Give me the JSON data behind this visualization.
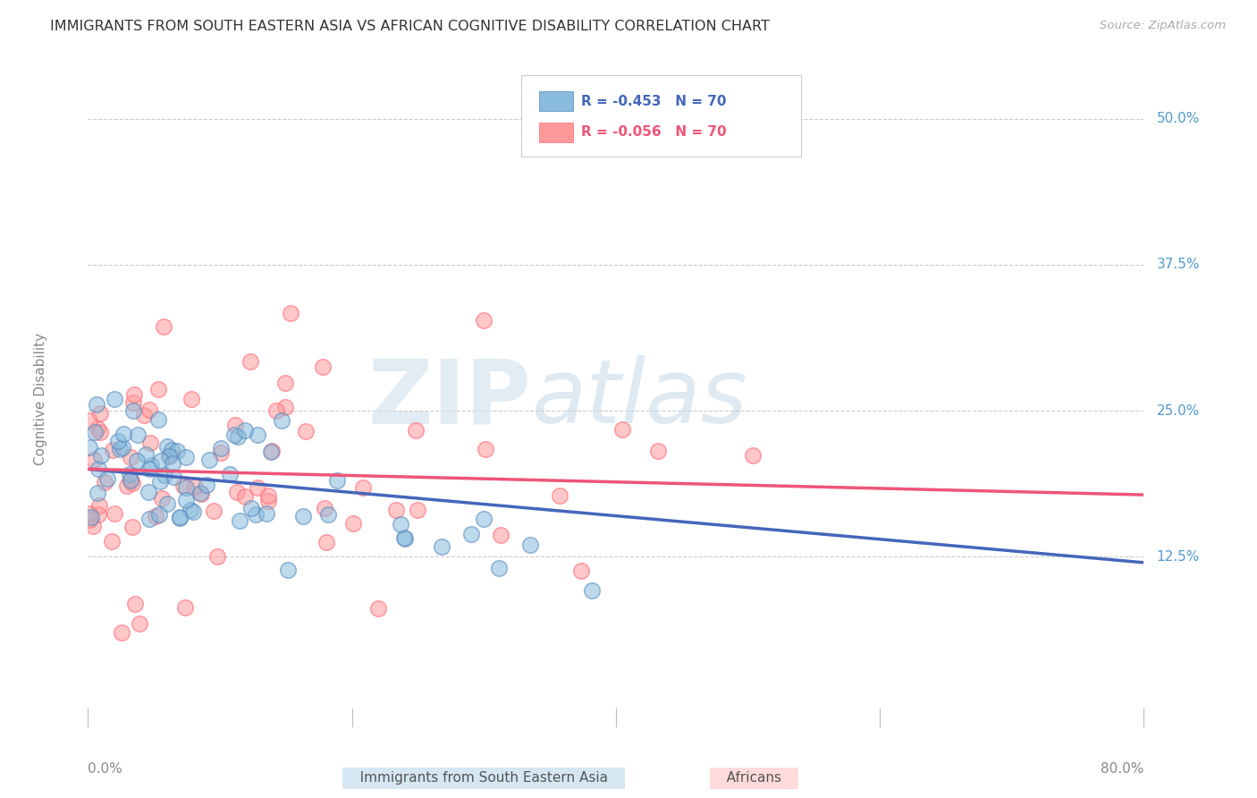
{
  "title": "IMMIGRANTS FROM SOUTH EASTERN ASIA VS AFRICAN COGNITIVE DISABILITY CORRELATION CHART",
  "source": "Source: ZipAtlas.com",
  "ylabel": "Cognitive Disability",
  "xlim": [
    0.0,
    0.8
  ],
  "ylim": [
    -0.02,
    0.54
  ],
  "plot_ylim": [
    -0.02,
    0.54
  ],
  "ytick_vals": [
    0.125,
    0.25,
    0.375,
    0.5
  ],
  "ytick_labels": [
    "12.5%",
    "25.0%",
    "37.5%",
    "50.0%"
  ],
  "xtick_vals": [
    0.0,
    0.2,
    0.4,
    0.6,
    0.8
  ],
  "legend1_label": "R = -0.453   N = 70",
  "legend2_label": "R = -0.056   N = 70",
  "blue_color": "#88BBDD",
  "pink_color": "#FF9999",
  "blue_edge_color": "#5588BB",
  "pink_edge_color": "#FF6677",
  "blue_line_color": "#4466BB",
  "pink_line_color": "#EE5577",
  "watermark_color": "#D8E8F0",
  "watermark_color2": "#C8D8E8",
  "bottom_legend1": "Immigrants from South Eastern Asia",
  "bottom_legend2": "Africans",
  "blue_line_y0": 0.2,
  "blue_line_y1": 0.12,
  "pink_line_y0": 0.2,
  "pink_line_y1": 0.178,
  "N": 70,
  "grid_color": "#CCCCCC",
  "ytick_color": "#5599CC",
  "xtick_color": "#888888",
  "title_color": "#333333",
  "ylabel_color": "#888888",
  "source_color": "#AAAAAA"
}
